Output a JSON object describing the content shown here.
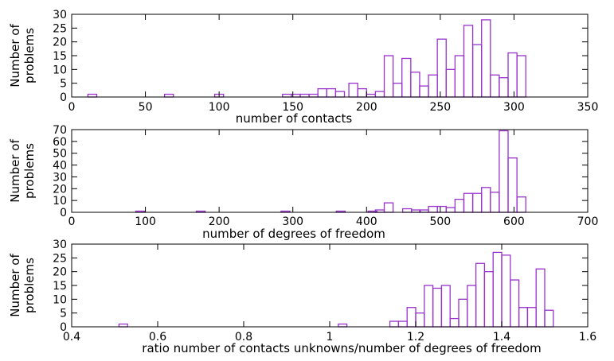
{
  "chart_data": [
    {
      "type": "bar",
      "title": "",
      "xlabel": "number of contacts",
      "ylabel": "Number of problems",
      "ylabel_lines": [
        "Number of",
        "problems"
      ],
      "xlim": [
        0,
        350
      ],
      "ylim": [
        0,
        30
      ],
      "xticks": [
        0,
        50,
        100,
        150,
        200,
        250,
        300,
        350
      ],
      "yticks": [
        0,
        5,
        10,
        15,
        20,
        25,
        30
      ],
      "bin_width": 6,
      "color": "#9933cc",
      "bins": [
        [
          14,
          1
        ],
        [
          66,
          1
        ],
        [
          100,
          1
        ],
        [
          146,
          1
        ],
        [
          152,
          1
        ],
        [
          158,
          1
        ],
        [
          164,
          1
        ],
        [
          170,
          3
        ],
        [
          176,
          3
        ],
        [
          182,
          2
        ],
        [
          191,
          5
        ],
        [
          197,
          3
        ],
        [
          203,
          1
        ],
        [
          209,
          2
        ],
        [
          215,
          15
        ],
        [
          221,
          5
        ],
        [
          227,
          14
        ],
        [
          233,
          9
        ],
        [
          239,
          4
        ],
        [
          245,
          8
        ],
        [
          251,
          21
        ],
        [
          257,
          10
        ],
        [
          263,
          15
        ],
        [
          269,
          26
        ],
        [
          275,
          19
        ],
        [
          281,
          28
        ],
        [
          287,
          8
        ],
        [
          293,
          7
        ],
        [
          299,
          16
        ],
        [
          305,
          15
        ]
      ]
    },
    {
      "type": "bar",
      "title": "",
      "xlabel": "number of degrees of freedom",
      "ylabel": "Number of problems",
      "ylabel_lines": [
        "Number of",
        "problems"
      ],
      "xlim": [
        0,
        700
      ],
      "ylim": [
        0,
        70
      ],
      "xticks": [
        0,
        100,
        200,
        300,
        400,
        500,
        600,
        700
      ],
      "yticks": [
        0,
        10,
        20,
        30,
        40,
        50,
        60,
        70
      ],
      "bin_width": 12,
      "color": "#9933cc",
      "bins": [
        [
          93,
          1
        ],
        [
          175,
          1
        ],
        [
          290,
          1
        ],
        [
          365,
          1
        ],
        [
          408,
          1
        ],
        [
          418,
          2
        ],
        [
          430,
          8
        ],
        [
          455,
          3
        ],
        [
          467,
          2
        ],
        [
          478,
          2
        ],
        [
          490,
          5
        ],
        [
          502,
          5
        ],
        [
          514,
          4
        ],
        [
          526,
          11
        ],
        [
          538,
          16
        ],
        [
          550,
          16
        ],
        [
          562,
          21
        ],
        [
          574,
          17
        ],
        [
          586,
          69
        ],
        [
          598,
          46
        ],
        [
          610,
          13
        ]
      ]
    },
    {
      "type": "bar",
      "title": "",
      "xlabel": "ratio number of contacts unknowns/number of degrees of freedom",
      "ylabel": "Number of problems",
      "ylabel_lines": [
        "Number of",
        "problems"
      ],
      "xlim": [
        0.4,
        1.6
      ],
      "ylim": [
        0,
        30
      ],
      "xticks": [
        0.4,
        0.6,
        0.8,
        1.0,
        1.2,
        1.4,
        1.6
      ],
      "xtick_labels": [
        "0.4",
        "0.6",
        "0.8",
        "1",
        "1.2",
        "1.4",
        "1.6"
      ],
      "yticks": [
        0,
        5,
        10,
        15,
        20,
        25,
        30
      ],
      "bin_width": 0.02,
      "color": "#9933cc",
      "bins": [
        [
          0.52,
          1
        ],
        [
          1.03,
          1
        ],
        [
          1.15,
          2
        ],
        [
          1.17,
          2
        ],
        [
          1.19,
          7
        ],
        [
          1.21,
          5
        ],
        [
          1.23,
          15
        ],
        [
          1.25,
          14
        ],
        [
          1.27,
          15
        ],
        [
          1.29,
          3
        ],
        [
          1.31,
          10
        ],
        [
          1.33,
          15
        ],
        [
          1.35,
          23
        ],
        [
          1.37,
          20
        ],
        [
          1.39,
          27
        ],
        [
          1.41,
          26
        ],
        [
          1.43,
          17
        ],
        [
          1.45,
          7
        ],
        [
          1.47,
          7
        ],
        [
          1.49,
          21
        ],
        [
          1.51,
          6
        ]
      ]
    }
  ]
}
